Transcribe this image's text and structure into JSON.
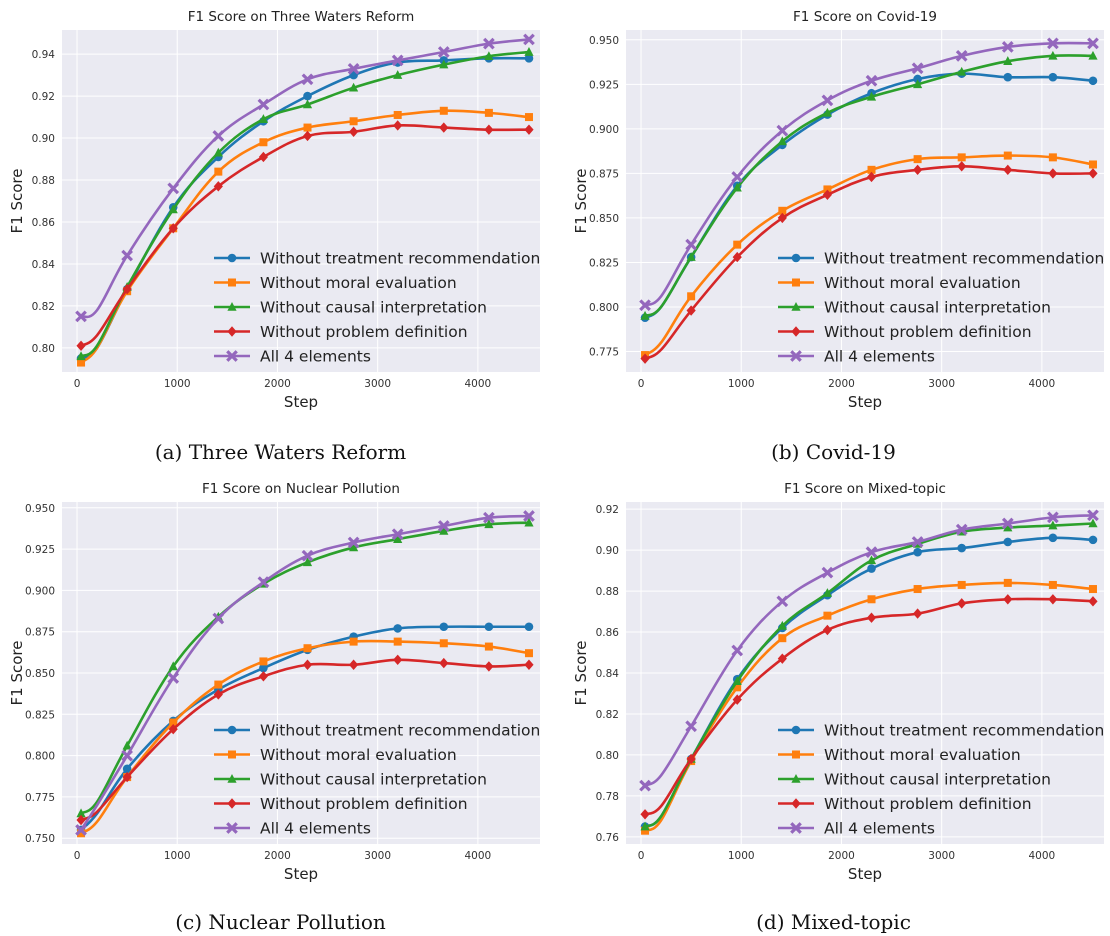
{
  "captions": [
    "(a) Three Waters Reform",
    "(b) Covid-19",
    "(c) Nuclear Pollution",
    "(d) Mixed-topic"
  ],
  "chart_data": [
    {
      "type": "line",
      "title": "F1 Score on Three Waters Reform",
      "xlabel": "Step",
      "ylabel": "F1 Score",
      "xlim": [
        -150,
        4620
      ],
      "ylim": [
        0.7885,
        0.9515
      ],
      "xticks": [
        0,
        1000,
        2000,
        3000,
        4000
      ],
      "yticks": [
        0.8,
        0.82,
        0.84,
        0.86,
        0.88,
        0.9,
        0.92,
        0.94
      ],
      "ytick_decimals": 2,
      "grid": true,
      "legend_position": "lower right",
      "series": [
        {
          "name": "Without treatment recommendation",
          "color": "#1f77b4",
          "marker": "circle",
          "x": [
            40,
            200,
            500,
            960,
            1410,
            1860,
            2300,
            2760,
            3200,
            3660,
            4110,
            4510
          ],
          "y": [
            0.795,
            0.8,
            0.828,
            0.867,
            0.891,
            0.908,
            0.92,
            0.93,
            0.936,
            0.937,
            0.938,
            0.938
          ]
        },
        {
          "name": "Without moral evaluation",
          "color": "#ff7f0e",
          "marker": "square",
          "x": [
            40,
            200,
            500,
            960,
            1410,
            1860,
            2300,
            2760,
            3200,
            3660,
            4110,
            4510
          ],
          "y": [
            0.793,
            0.8,
            0.827,
            0.857,
            0.884,
            0.898,
            0.905,
            0.908,
            0.911,
            0.913,
            0.912,
            0.91
          ]
        },
        {
          "name": "Without causal interpretation",
          "color": "#2ca02c",
          "marker": "triangle",
          "x": [
            40,
            200,
            500,
            960,
            1410,
            1860,
            2300,
            2760,
            3200,
            3660,
            4110,
            4510
          ],
          "y": [
            0.796,
            0.801,
            0.829,
            0.866,
            0.893,
            0.909,
            0.916,
            0.924,
            0.93,
            0.935,
            0.939,
            0.941
          ]
        },
        {
          "name": "Without problem definition",
          "color": "#d62728",
          "marker": "diamond",
          "x": [
            40,
            200,
            500,
            960,
            1410,
            1860,
            2300,
            2760,
            3200,
            3660,
            4110,
            4510
          ],
          "y": [
            0.801,
            0.806,
            0.828,
            0.857,
            0.877,
            0.891,
            0.901,
            0.903,
            0.906,
            0.905,
            0.904,
            0.904
          ]
        },
        {
          "name": "All 4 elements",
          "color": "#9467bd",
          "marker": "x",
          "x": [
            40,
            200,
            500,
            960,
            1410,
            1860,
            2300,
            2760,
            3200,
            3660,
            4110,
            4510
          ],
          "y": [
            0.815,
            0.818,
            0.844,
            0.876,
            0.901,
            0.916,
            0.928,
            0.933,
            0.937,
            0.941,
            0.945,
            0.947
          ]
        }
      ]
    },
    {
      "type": "line",
      "title": "F1 Score on Covid-19",
      "xlabel": "Step",
      "ylabel": "F1 Score",
      "xlim": [
        -150,
        4620
      ],
      "ylim": [
        0.7635,
        0.9555
      ],
      "xticks": [
        0,
        1000,
        2000,
        3000,
        4000
      ],
      "yticks": [
        0.775,
        0.8,
        0.825,
        0.85,
        0.875,
        0.9,
        0.925,
        0.95
      ],
      "ytick_decimals": 3,
      "grid": true,
      "legend_position": "lower right",
      "series": [
        {
          "name": "Without treatment recommendation",
          "color": "#1f77b4",
          "marker": "circle",
          "x": [
            40,
            200,
            500,
            960,
            1410,
            1860,
            2300,
            2760,
            3200,
            3660,
            4110,
            4510
          ],
          "y": [
            0.794,
            0.8,
            0.828,
            0.868,
            0.891,
            0.908,
            0.92,
            0.928,
            0.931,
            0.929,
            0.929,
            0.927
          ]
        },
        {
          "name": "Without moral evaluation",
          "color": "#ff7f0e",
          "marker": "square",
          "x": [
            40,
            200,
            500,
            960,
            1410,
            1860,
            2300,
            2760,
            3200,
            3660,
            4110,
            4510
          ],
          "y": [
            0.773,
            0.78,
            0.806,
            0.835,
            0.854,
            0.866,
            0.877,
            0.883,
            0.884,
            0.885,
            0.884,
            0.88
          ]
        },
        {
          "name": "Without causal interpretation",
          "color": "#2ca02c",
          "marker": "triangle",
          "x": [
            40,
            200,
            500,
            960,
            1410,
            1860,
            2300,
            2760,
            3200,
            3660,
            4110,
            4510
          ],
          "y": [
            0.795,
            0.8,
            0.828,
            0.867,
            0.893,
            0.909,
            0.918,
            0.925,
            0.932,
            0.938,
            0.941,
            0.941
          ]
        },
        {
          "name": "Without problem definition",
          "color": "#d62728",
          "marker": "diamond",
          "x": [
            40,
            200,
            500,
            960,
            1410,
            1860,
            2300,
            2760,
            3200,
            3660,
            4110,
            4510
          ],
          "y": [
            0.771,
            0.776,
            0.798,
            0.828,
            0.85,
            0.863,
            0.873,
            0.877,
            0.879,
            0.877,
            0.875,
            0.875
          ]
        },
        {
          "name": "All 4 elements",
          "color": "#9467bd",
          "marker": "x",
          "x": [
            40,
            200,
            500,
            960,
            1410,
            1860,
            2300,
            2760,
            3200,
            3660,
            4110,
            4510
          ],
          "y": [
            0.801,
            0.806,
            0.835,
            0.873,
            0.899,
            0.916,
            0.927,
            0.934,
            0.941,
            0.946,
            0.948,
            0.948
          ]
        }
      ]
    },
    {
      "type": "line",
      "title": "F1 Score on Nuclear Pollution",
      "xlabel": "Step",
      "ylabel": "F1 Score",
      "xlim": [
        -150,
        4620
      ],
      "ylim": [
        0.7465,
        0.9535
      ],
      "xticks": [
        0,
        1000,
        2000,
        3000,
        4000
      ],
      "yticks": [
        0.75,
        0.775,
        0.8,
        0.825,
        0.85,
        0.875,
        0.9,
        0.925,
        0.95
      ],
      "ytick_decimals": 3,
      "grid": true,
      "legend_position": "lower right",
      "series": [
        {
          "name": "Without treatment recommendation",
          "color": "#1f77b4",
          "marker": "circle",
          "x": [
            40,
            200,
            500,
            960,
            1410,
            1860,
            2300,
            2760,
            3200,
            3660,
            4110,
            4510
          ],
          "y": [
            0.755,
            0.765,
            0.792,
            0.821,
            0.84,
            0.853,
            0.864,
            0.872,
            0.877,
            0.878,
            0.878,
            0.878
          ]
        },
        {
          "name": "Without moral evaluation",
          "color": "#ff7f0e",
          "marker": "square",
          "x": [
            40,
            200,
            500,
            960,
            1410,
            1860,
            2300,
            2760,
            3200,
            3660,
            4110,
            4510
          ],
          "y": [
            0.753,
            0.76,
            0.787,
            0.82,
            0.843,
            0.857,
            0.865,
            0.869,
            0.869,
            0.868,
            0.866,
            0.862
          ]
        },
        {
          "name": "Without causal interpretation",
          "color": "#2ca02c",
          "marker": "triangle",
          "x": [
            40,
            200,
            500,
            960,
            1410,
            1860,
            2300,
            2760,
            3200,
            3660,
            4110,
            4510
          ],
          "y": [
            0.765,
            0.772,
            0.806,
            0.854,
            0.884,
            0.904,
            0.917,
            0.926,
            0.931,
            0.936,
            0.94,
            0.941
          ]
        },
        {
          "name": "Without problem definition",
          "color": "#d62728",
          "marker": "diamond",
          "x": [
            40,
            200,
            500,
            960,
            1410,
            1860,
            2300,
            2760,
            3200,
            3660,
            4110,
            4510
          ],
          "y": [
            0.761,
            0.766,
            0.787,
            0.816,
            0.837,
            0.848,
            0.855,
            0.855,
            0.858,
            0.856,
            0.854,
            0.855
          ]
        },
        {
          "name": "All 4 elements",
          "color": "#9467bd",
          "marker": "x",
          "x": [
            40,
            200,
            500,
            960,
            1410,
            1860,
            2300,
            2760,
            3200,
            3660,
            4110,
            4510
          ],
          "y": [
            0.755,
            0.77,
            0.8,
            0.847,
            0.883,
            0.905,
            0.921,
            0.929,
            0.934,
            0.939,
            0.944,
            0.945
          ]
        }
      ]
    },
    {
      "type": "line",
      "title": "F1 Score on Mixed-topic",
      "xlabel": "Step",
      "ylabel": "F1 Score",
      "xlim": [
        -150,
        4620
      ],
      "ylim": [
        0.7565,
        0.9235
      ],
      "xticks": [
        0,
        1000,
        2000,
        3000,
        4000
      ],
      "yticks": [
        0.76,
        0.78,
        0.8,
        0.82,
        0.84,
        0.86,
        0.88,
        0.9,
        0.92
      ],
      "ytick_decimals": 2,
      "grid": true,
      "legend_position": "lower right",
      "series": [
        {
          "name": "Without treatment recommendation",
          "color": "#1f77b4",
          "marker": "circle",
          "x": [
            40,
            200,
            500,
            960,
            1410,
            1860,
            2300,
            2760,
            3200,
            3660,
            4110,
            4510
          ],
          "y": [
            0.765,
            0.77,
            0.798,
            0.837,
            0.862,
            0.878,
            0.891,
            0.899,
            0.901,
            0.904,
            0.906,
            0.905
          ]
        },
        {
          "name": "Without moral evaluation",
          "color": "#ff7f0e",
          "marker": "square",
          "x": [
            40,
            200,
            500,
            960,
            1410,
            1860,
            2300,
            2760,
            3200,
            3660,
            4110,
            4510
          ],
          "y": [
            0.763,
            0.768,
            0.797,
            0.833,
            0.857,
            0.868,
            0.876,
            0.881,
            0.883,
            0.884,
            0.883,
            0.881
          ]
        },
        {
          "name": "Without causal interpretation",
          "color": "#2ca02c",
          "marker": "triangle",
          "x": [
            40,
            200,
            500,
            960,
            1410,
            1860,
            2300,
            2760,
            3200,
            3660,
            4110,
            4510
          ],
          "y": [
            0.765,
            0.77,
            0.798,
            0.836,
            0.863,
            0.879,
            0.895,
            0.903,
            0.909,
            0.911,
            0.912,
            0.913
          ]
        },
        {
          "name": "Without problem definition",
          "color": "#d62728",
          "marker": "diamond",
          "x": [
            40,
            200,
            500,
            960,
            1410,
            1860,
            2300,
            2760,
            3200,
            3660,
            4110,
            4510
          ],
          "y": [
            0.771,
            0.775,
            0.798,
            0.827,
            0.847,
            0.861,
            0.867,
            0.869,
            0.874,
            0.876,
            0.876,
            0.875
          ]
        },
        {
          "name": "All 4 elements",
          "color": "#9467bd",
          "marker": "x",
          "x": [
            40,
            200,
            500,
            960,
            1410,
            1860,
            2300,
            2760,
            3200,
            3660,
            4110,
            4510
          ],
          "y": [
            0.785,
            0.79,
            0.814,
            0.851,
            0.875,
            0.889,
            0.899,
            0.904,
            0.91,
            0.913,
            0.916,
            0.917
          ]
        }
      ]
    }
  ]
}
